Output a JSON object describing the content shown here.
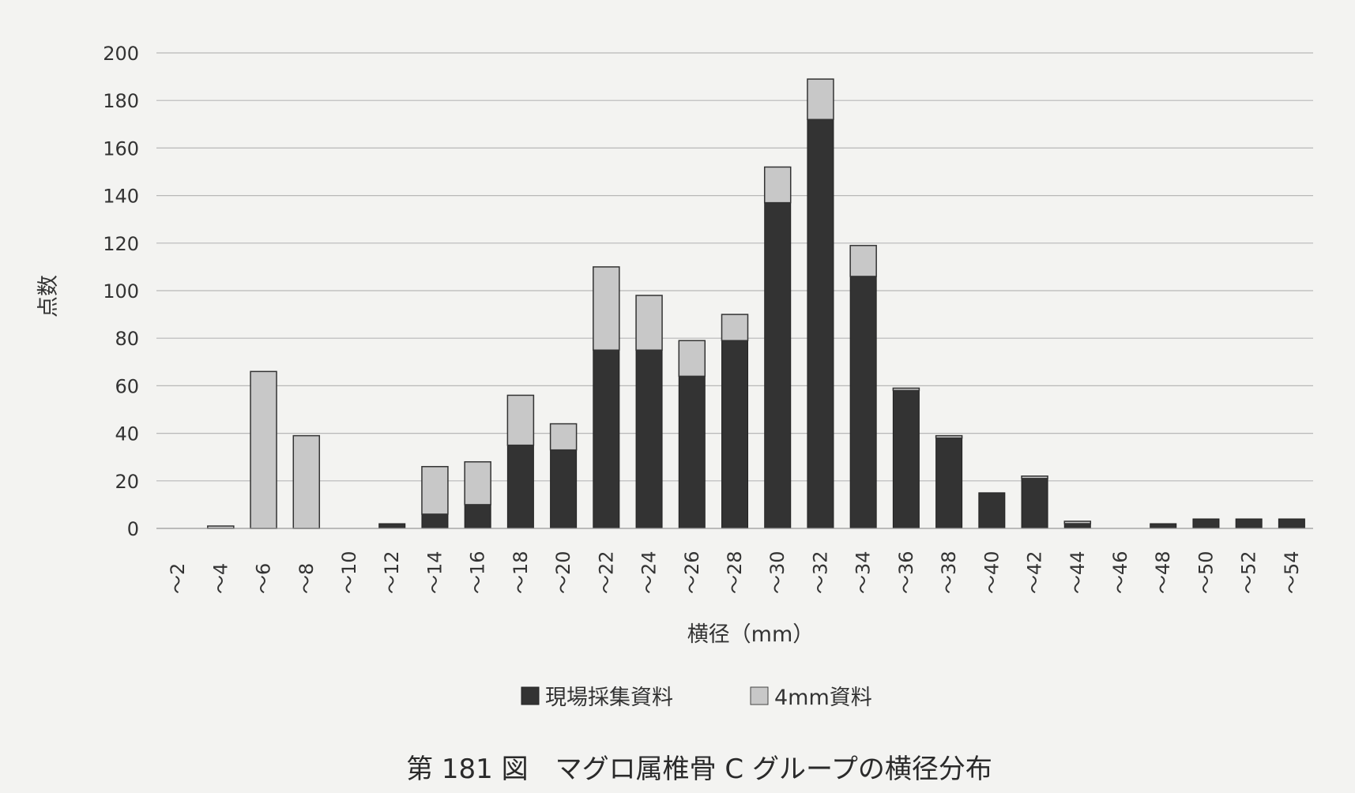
{
  "chart_data": {
    "type": "bar",
    "stacked": true,
    "title": "第 181 図　マグロ属椎骨 C グループの横径分布",
    "xlabel": "横径（mm）",
    "ylabel": "点数",
    "ylim": [
      0,
      200
    ],
    "yticks": [
      0,
      20,
      40,
      60,
      80,
      100,
      120,
      140,
      160,
      180,
      200
    ],
    "grid": true,
    "legend_position": "bottom",
    "categories": [
      "～2",
      "～4",
      "～6",
      "～8",
      "～10",
      "～12",
      "～14",
      "～16",
      "～18",
      "～20",
      "～22",
      "～24",
      "～26",
      "～28",
      "～30",
      "～32",
      "～34",
      "～36",
      "～38",
      "～40",
      "～42",
      "～44",
      "～46",
      "～48",
      "～50",
      "～52",
      "～54"
    ],
    "series": [
      {
        "name": "現場採集資料",
        "color": "#333333",
        "values": [
          0,
          0,
          0,
          0,
          0,
          2,
          6,
          10,
          35,
          33,
          75,
          75,
          64,
          79,
          137,
          172,
          106,
          58,
          38,
          15,
          21,
          2,
          0,
          2,
          4,
          4,
          4
        ]
      },
      {
        "name": "4mm資料",
        "color": "#c8c8c8",
        "values": [
          0,
          1,
          66,
          39,
          0,
          0,
          20,
          18,
          21,
          11,
          35,
          23,
          15,
          11,
          15,
          17,
          13,
          1,
          1,
          0,
          1,
          1,
          0,
          0,
          0,
          0,
          0
        ]
      }
    ]
  }
}
